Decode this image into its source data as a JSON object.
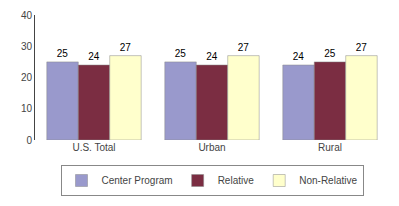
{
  "chart_data": {
    "type": "bar",
    "categories": [
      "U.S. Total",
      "Urban",
      "Rural"
    ],
    "series": [
      {
        "name": "Center Program",
        "color": "#9999CC",
        "values": [
          25,
          25,
          24
        ]
      },
      {
        "name": "Relative",
        "color": "#7B2D42",
        "values": [
          24,
          24,
          25
        ]
      },
      {
        "name": "Non-Relative",
        "color": "#FFFFCC",
        "values": [
          27,
          27,
          27
        ]
      }
    ],
    "ylim": [
      0,
      40
    ],
    "yticks": [
      0,
      10,
      20,
      30,
      40
    ],
    "grid": false,
    "legend": "bottom",
    "data_labels": true
  }
}
